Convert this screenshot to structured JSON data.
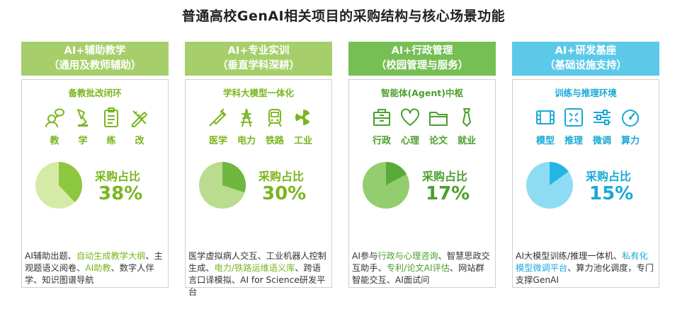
{
  "title": "普通高校GenAI相关项目的采购结构与核心场景功能",
  "columns": [
    {
      "header_line1": "AI+辅助教学",
      "header_line2": "（通用及教师辅助）",
      "subtitle": "备教批改闭环",
      "header_color": "#a6cf6b",
      "accent_color": "#7ab51d",
      "pie_dark": "#8dc63f",
      "pie_light": "#d6eaa8",
      "icons": [
        {
          "name": "user-chat-icon",
          "label": "教"
        },
        {
          "name": "lamp-icon",
          "label": "学"
        },
        {
          "name": "clipboard-icon",
          "label": "练"
        },
        {
          "name": "pencil-ruler-icon",
          "label": "改"
        }
      ],
      "procurement_label": "采购占比",
      "procurement_share": "38%",
      "share_value": 38,
      "desc_parts": [
        {
          "text": "AI辅助出题、",
          "hl": false
        },
        {
          "text": "自动生成教学大纲",
          "hl": true
        },
        {
          "text": "、主观题语义阅卷、",
          "hl": false
        },
        {
          "text": "AI助教",
          "hl": true
        },
        {
          "text": "、数字人伴学、知识图谱导航",
          "hl": false
        }
      ]
    },
    {
      "header_line1": "AI+专业实训",
      "header_line2": "（垂直学科深耕）",
      "subtitle": "学科大模型一体化",
      "header_color": "#a6cf6b",
      "accent_color": "#7ab51d",
      "pie_dark": "#6fb83f",
      "pie_light": "#b9dc8e",
      "icons": [
        {
          "name": "syringe-icon",
          "label": "医学"
        },
        {
          "name": "power-tower-icon",
          "label": "电力"
        },
        {
          "name": "train-icon",
          "label": "铁路"
        },
        {
          "name": "radiation-icon",
          "label": "工业"
        }
      ],
      "procurement_label": "采购占比",
      "procurement_share": "30%",
      "share_value": 30,
      "desc_parts": [
        {
          "text": "医学虚拟病人交互、工业机器人控制生成、",
          "hl": false
        },
        {
          "text": "电力/铁路运维语义库",
          "hl": true
        },
        {
          "text": "、跨语言口译模拟、AI for Science研发平台",
          "hl": false
        }
      ]
    },
    {
      "header_line1": "AI+行政管理",
      "header_line2": "（校园管理与服务）",
      "subtitle": "智能体(Agent)中枢",
      "header_color": "#76bf55",
      "accent_color": "#4d9e2d",
      "pie_dark": "#5aaa3a",
      "pie_light": "#94cd6e",
      "icons": [
        {
          "name": "cabinet-icon",
          "label": "行政"
        },
        {
          "name": "heart-icon",
          "label": "心理"
        },
        {
          "name": "folder-icon",
          "label": "论文"
        },
        {
          "name": "tie-icon",
          "label": "就业"
        }
      ],
      "procurement_label": "采购占比",
      "procurement_share": "17%",
      "share_value": 17,
      "desc_parts": [
        {
          "text": "AI参与",
          "hl": false
        },
        {
          "text": "行政与心理咨询",
          "hl": true
        },
        {
          "text": "、智慧思政交互助手、",
          "hl": false
        },
        {
          "text": "专利/论文AI评估",
          "hl": true
        },
        {
          "text": "、网站群智能交互、AI面试问",
          "hl": false
        }
      ]
    },
    {
      "header_line1": "AI+研发基座",
      "header_line2": "（基础设施支持）",
      "subtitle": "训练与推理环境",
      "header_color": "#5cc9e9",
      "accent_color": "#1aa8d6",
      "pie_dark": "#22b6e6",
      "pie_light": "#8ddcf4",
      "icons": [
        {
          "name": "film-model-icon",
          "label": "模型"
        },
        {
          "name": "inference-grid-icon",
          "label": "推理"
        },
        {
          "name": "sliders-icon",
          "label": "微调"
        },
        {
          "name": "gauge-icon",
          "label": "算力"
        }
      ],
      "procurement_label": "采购占比",
      "procurement_share": "15%",
      "share_value": 15,
      "desc_parts": [
        {
          "text": "AI大模型训练/推理一体机、",
          "hl": false
        },
        {
          "text": "私有化模型微调平台",
          "hl": true
        },
        {
          "text": "、算力池化调度，专门支撑GenAI",
          "hl": false
        }
      ]
    }
  ]
}
